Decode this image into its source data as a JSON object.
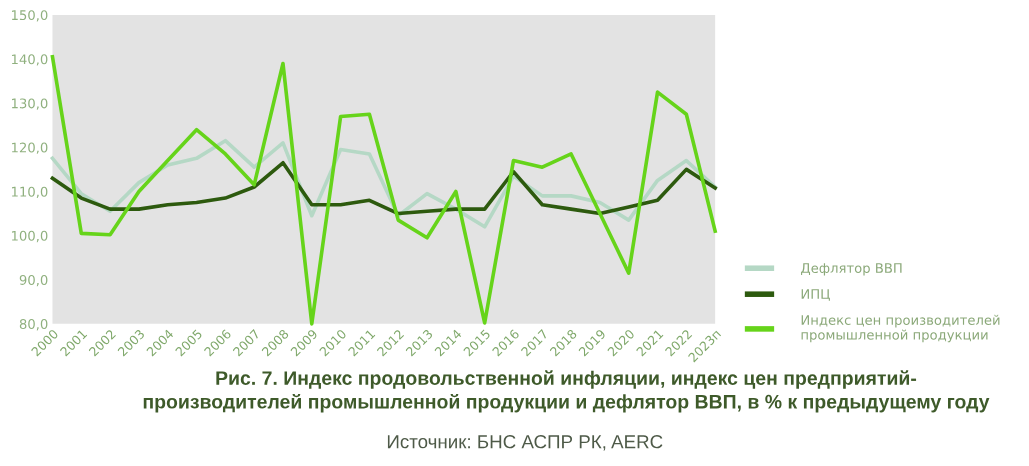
{
  "chart_data": {
    "type": "line",
    "title": "Рис. 7. Индекс продовольственной инфляции, индекс цен предприятий-\nпроизводителей промышленной продукции и дефлятор ВВП, в % к предыдущему году",
    "annotations": [
      "Источник: БНС АСПР РК, AERC"
    ],
    "categories": [
      "2000",
      "2001",
      "2002",
      "2003",
      "2004",
      "2005",
      "2006",
      "2007",
      "2008",
      "2009",
      "2010",
      "2011",
      "2012",
      "2013",
      "2014",
      "2015",
      "2016",
      "2017",
      "2018",
      "2019",
      "2020",
      "2021",
      "2022",
      "2023п"
    ],
    "series": [
      {
        "name": "Дефлятор ВВП",
        "color": "#b5d8c5",
        "values": [
          117.5,
          109.5,
          105.5,
          112,
          116,
          117.5,
          121.5,
          115.5,
          121,
          104.5,
          119.5,
          118.5,
          104.5,
          109.5,
          106,
          102,
          113.5,
          109,
          109,
          107.5,
          103.5,
          112.5,
          117,
          111
        ]
      },
      {
        "name": "ИПЦ",
        "color": "#2d5a0e",
        "values": [
          113,
          108.5,
          106,
          106,
          107,
          107.5,
          108.5,
          111,
          116.5,
          107,
          107,
          108,
          105,
          105.5,
          106,
          106,
          114.5,
          107,
          106,
          105,
          106.5,
          108,
          115,
          110.8
        ]
      },
      {
        "name": "Индекс цен производителей\nпромышленной продукции",
        "color": "#66d41a",
        "values": [
          140.5,
          100.5,
          100.2,
          110,
          117,
          124,
          118.5,
          111.5,
          139,
          80,
          127,
          127.5,
          103.5,
          99.5,
          110,
          80.2,
          117,
          115.5,
          118.5,
          105,
          91.5,
          132.5,
          127.5,
          101
        ]
      }
    ],
    "ylim": [
      80,
      150
    ],
    "yticks": [
      {
        "value": 80,
        "label": "80,0"
      },
      {
        "value": 90,
        "label": "90,0"
      },
      {
        "value": 100,
        "label": "100,0"
      },
      {
        "value": 110,
        "label": "110,0"
      },
      {
        "value": 120,
        "label": "120,0"
      },
      {
        "value": 130,
        "label": "130,0"
      },
      {
        "value": 140,
        "label": "140,0"
      },
      {
        "value": 150,
        "label": "150,0"
      }
    ],
    "grid": false,
    "legend": "right",
    "marker": "none",
    "line_style": "solid"
  }
}
